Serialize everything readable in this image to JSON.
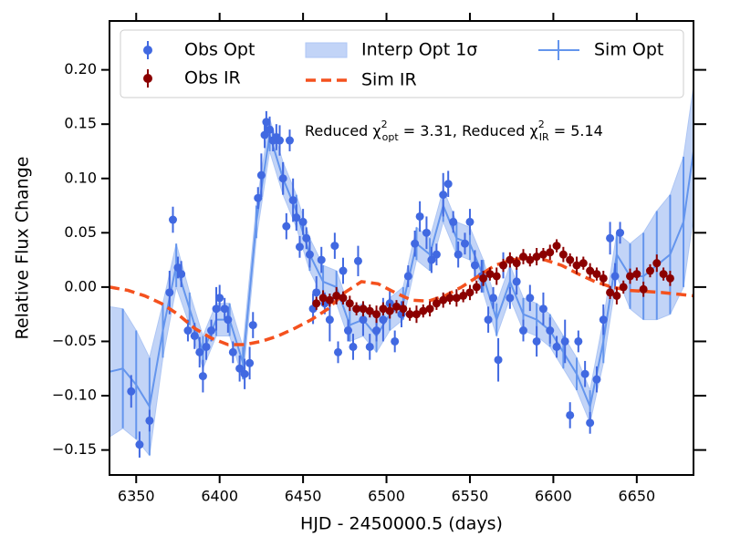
{
  "chart_data": {
    "type": "line",
    "xlabel": "HJD - 2450000.5 (days)",
    "ylabel": "Relative Flux Change",
    "annotation": [
      "Reduced χ",
      "2",
      "opt",
      " = 3.31, Reduced χ",
      "2",
      "IR",
      " = 5.14"
    ],
    "xlim": [
      6334,
      6684
    ],
    "ylim": [
      -0.173,
      0.245
    ],
    "xticks": [
      6350,
      6400,
      6450,
      6500,
      6550,
      6600,
      6650
    ],
    "yticks": [
      {
        "value": -0.15,
        "label": "−0.15"
      },
      {
        "value": -0.1,
        "label": "−0.10"
      },
      {
        "value": -0.05,
        "label": "−0.05"
      },
      {
        "value": 0.0,
        "label": "0.00"
      },
      {
        "value": 0.05,
        "label": "0.05"
      },
      {
        "value": 0.1,
        "label": "0.10"
      },
      {
        "value": 0.15,
        "label": "0.15"
      },
      {
        "value": 0.2,
        "label": "0.20"
      }
    ],
    "grid": false,
    "legend": "upper center",
    "legend_columns": 3,
    "series": [
      {
        "name": "Interp Opt 1σ",
        "kind": "band",
        "color": "#aec6f4",
        "x": [
          6334,
          6342,
          6350,
          6358,
          6366,
          6374,
          6382,
          6390,
          6398,
          6406,
          6414,
          6422,
          6430,
          6438,
          6446,
          6454,
          6462,
          6470,
          6478,
          6486,
          6494,
          6502,
          6510,
          6518,
          6526,
          6534,
          6542,
          6550,
          6558,
          6566,
          6574,
          6582,
          6590,
          6598,
          6606,
          6614,
          6622,
          6630,
          6638,
          6646,
          6654,
          6662,
          6670,
          6678,
          6684
        ],
        "lower": [
          -0.138,
          -0.13,
          -0.14,
          -0.155,
          -0.065,
          0.0,
          -0.035,
          -0.075,
          -0.045,
          -0.045,
          -0.085,
          0.045,
          0.125,
          0.085,
          0.055,
          0.015,
          -0.01,
          -0.015,
          -0.05,
          -0.045,
          -0.06,
          -0.04,
          -0.03,
          0.025,
          0.015,
          0.06,
          0.03,
          0.025,
          -0.005,
          -0.045,
          -0.01,
          -0.04,
          -0.045,
          -0.055,
          -0.075,
          -0.095,
          -0.125,
          -0.07,
          0.01,
          -0.02,
          -0.03,
          -0.03,
          -0.025,
          0.0,
          0.065
        ],
        "upper": [
          -0.018,
          -0.02,
          -0.04,
          -0.065,
          -0.015,
          0.04,
          -0.005,
          -0.045,
          -0.015,
          -0.015,
          -0.055,
          0.075,
          0.155,
          0.115,
          0.085,
          0.045,
          0.02,
          0.015,
          -0.02,
          -0.015,
          -0.03,
          -0.01,
          0.0,
          0.055,
          0.045,
          0.09,
          0.06,
          0.055,
          0.025,
          -0.015,
          0.02,
          -0.01,
          -0.015,
          -0.025,
          -0.045,
          -0.065,
          -0.095,
          -0.03,
          0.05,
          0.04,
          0.05,
          0.07,
          0.085,
          0.12,
          0.185
        ]
      },
      {
        "name": "Sim Opt",
        "kind": "line-errorbar",
        "color": "#6495ed",
        "x": [
          6334,
          6342,
          6350,
          6358,
          6366,
          6374,
          6382,
          6390,
          6398,
          6406,
          6414,
          6422,
          6430,
          6438,
          6446,
          6454,
          6462,
          6470,
          6478,
          6486,
          6494,
          6502,
          6510,
          6518,
          6526,
          6534,
          6542,
          6550,
          6558,
          6566,
          6574,
          6582,
          6590,
          6598,
          6606,
          6614,
          6622,
          6630,
          6638,
          6646,
          6654,
          6662,
          6670,
          6678,
          6684
        ],
        "values": [
          -0.078,
          -0.075,
          -0.09,
          -0.11,
          -0.04,
          0.02,
          -0.02,
          -0.06,
          -0.03,
          -0.03,
          -0.07,
          0.06,
          0.14,
          0.1,
          0.07,
          0.03,
          0.005,
          0.0,
          -0.035,
          -0.03,
          -0.045,
          -0.025,
          -0.015,
          0.04,
          0.03,
          0.075,
          0.045,
          0.04,
          0.01,
          -0.03,
          0.005,
          -0.025,
          -0.03,
          -0.04,
          -0.06,
          -0.08,
          -0.11,
          -0.05,
          0.03,
          0.01,
          0.01,
          0.02,
          0.03,
          0.06,
          0.125
        ],
        "errors": [
          0.06,
          0.055,
          0.05,
          0.045,
          0.025,
          0.02,
          0.015,
          0.015,
          0.015,
          0.015,
          0.015,
          0.015,
          0.015,
          0.015,
          0.015,
          0.015,
          0.015,
          0.015,
          0.015,
          0.015,
          0.015,
          0.015,
          0.015,
          0.015,
          0.015,
          0.015,
          0.015,
          0.015,
          0.015,
          0.015,
          0.015,
          0.015,
          0.015,
          0.015,
          0.015,
          0.015,
          0.015,
          0.02,
          0.02,
          0.03,
          0.04,
          0.05,
          0.055,
          0.06,
          0.06
        ]
      },
      {
        "name": "Obs Opt",
        "kind": "errorbar",
        "color": "#4169e1",
        "x": [
          6347,
          6352,
          6358,
          6370,
          6372,
          6375,
          6377,
          6381,
          6385,
          6388,
          6390,
          6392,
          6395,
          6398,
          6400,
          6403,
          6405,
          6408,
          6412,
          6415,
          6418,
          6420,
          6423,
          6425,
          6427,
          6428,
          6430,
          6432,
          6434,
          6436,
          6438,
          6440,
          6442,
          6444,
          6446,
          6448,
          6450,
          6452,
          6454,
          6456,
          6458,
          6461,
          6463,
          6466,
          6469,
          6471,
          6474,
          6477,
          6480,
          6483,
          6486,
          6490,
          6494,
          6498,
          6502,
          6505,
          6509,
          6513,
          6517,
          6520,
          6524,
          6527,
          6530,
          6534,
          6537,
          6540,
          6543,
          6547,
          6550,
          6553,
          6557,
          6561,
          6564,
          6567,
          6570,
          6574,
          6578,
          6582,
          6586,
          6590,
          6594,
          6598,
          6602,
          6607,
          6610,
          6615,
          6619,
          6622,
          6626,
          6630,
          6634,
          6637,
          6640
        ],
        "values": [
          -0.096,
          -0.145,
          -0.123,
          -0.005,
          0.062,
          0.018,
          0.012,
          -0.04,
          -0.045,
          -0.06,
          -0.082,
          -0.055,
          -0.04,
          -0.02,
          -0.01,
          -0.02,
          -0.03,
          -0.06,
          -0.075,
          -0.08,
          -0.07,
          -0.035,
          0.082,
          0.103,
          0.14,
          0.152,
          0.145,
          0.135,
          0.138,
          0.135,
          0.1,
          0.056,
          0.135,
          0.08,
          0.064,
          0.037,
          0.06,
          0.045,
          0.03,
          -0.02,
          -0.005,
          0.025,
          -0.015,
          -0.03,
          0.038,
          -0.06,
          0.015,
          -0.04,
          -0.055,
          0.024,
          -0.03,
          -0.055,
          -0.04,
          -0.03,
          -0.015,
          -0.05,
          -0.025,
          0.01,
          0.04,
          0.065,
          0.05,
          0.025,
          0.03,
          0.085,
          0.095,
          0.06,
          0.03,
          0.04,
          0.06,
          0.02,
          0.01,
          -0.03,
          -0.01,
          -0.067,
          0.02,
          -0.01,
          0.005,
          -0.04,
          -0.01,
          -0.05,
          -0.02,
          -0.04,
          -0.055,
          -0.05,
          -0.118,
          -0.05,
          -0.08,
          -0.125,
          -0.085,
          -0.03,
          0.045,
          0.01,
          0.05
        ],
        "errors": [
          0.015,
          0.012,
          0.01,
          0.02,
          0.012,
          0.01,
          0.012,
          0.01,
          0.012,
          0.014,
          0.015,
          0.012,
          0.01,
          0.02,
          0.012,
          0.01,
          0.012,
          0.01,
          0.012,
          0.014,
          0.015,
          0.012,
          0.01,
          0.02,
          0.012,
          0.01,
          0.012,
          0.01,
          0.012,
          0.014,
          0.015,
          0.012,
          0.01,
          0.02,
          0.012,
          0.01,
          0.012,
          0.01,
          0.012,
          0.014,
          0.015,
          0.012,
          0.01,
          0.02,
          0.012,
          0.01,
          0.012,
          0.01,
          0.012,
          0.014,
          0.015,
          0.012,
          0.01,
          0.02,
          0.012,
          0.01,
          0.012,
          0.01,
          0.012,
          0.014,
          0.015,
          0.012,
          0.01,
          0.02,
          0.012,
          0.01,
          0.012,
          0.01,
          0.012,
          0.014,
          0.015,
          0.012,
          0.01,
          0.02,
          0.012,
          0.01,
          0.012,
          0.01,
          0.012,
          0.014,
          0.015,
          0.012,
          0.01,
          0.02,
          0.012,
          0.01,
          0.012,
          0.01,
          0.012,
          0.014,
          0.015,
          0.012,
          0.01
        ]
      },
      {
        "name": "Sim IR",
        "kind": "dashed",
        "color": "#f4511e",
        "x": [
          6334,
          6345,
          6355,
          6365,
          6375,
          6385,
          6395,
          6405,
          6415,
          6425,
          6435,
          6445,
          6455,
          6465,
          6475,
          6485,
          6495,
          6505,
          6515,
          6525,
          6535,
          6545,
          6555,
          6565,
          6575,
          6585,
          6595,
          6605,
          6615,
          6625,
          6635,
          6645,
          6655,
          6665,
          6684
        ],
        "values": [
          0.0,
          -0.003,
          -0.008,
          -0.015,
          -0.025,
          -0.038,
          -0.047,
          -0.053,
          -0.053,
          -0.05,
          -0.045,
          -0.038,
          -0.03,
          -0.02,
          -0.005,
          0.005,
          0.003,
          -0.005,
          -0.012,
          -0.013,
          -0.008,
          0.0,
          0.01,
          0.02,
          0.025,
          0.027,
          0.025,
          0.02,
          0.012,
          0.005,
          0.0,
          -0.003,
          -0.004,
          -0.005,
          -0.008
        ]
      },
      {
        "name": "Obs IR",
        "kind": "errorbar",
        "color": "#8b0000",
        "x": [
          6458,
          6462,
          6466,
          6470,
          6474,
          6478,
          6482,
          6486,
          6490,
          6494,
          6498,
          6502,
          6506,
          6510,
          6514,
          6518,
          6522,
          6526,
          6530,
          6534,
          6538,
          6542,
          6546,
          6550,
          6554,
          6558,
          6562,
          6566,
          6570,
          6574,
          6578,
          6582,
          6586,
          6590,
          6594,
          6598,
          6602,
          6606,
          6610,
          6614,
          6618,
          6622,
          6626,
          6630,
          6634,
          6638,
          6642,
          6646,
          6650,
          6654,
          6658,
          6662,
          6666,
          6670
        ],
        "values": [
          -0.015,
          -0.01,
          -0.012,
          -0.008,
          -0.01,
          -0.015,
          -0.02,
          -0.02,
          -0.022,
          -0.025,
          -0.02,
          -0.022,
          -0.018,
          -0.02,
          -0.025,
          -0.025,
          -0.022,
          -0.02,
          -0.015,
          -0.012,
          -0.01,
          -0.01,
          -0.008,
          -0.005,
          0.0,
          0.008,
          0.012,
          0.01,
          0.02,
          0.025,
          0.022,
          0.028,
          0.025,
          0.028,
          0.03,
          0.032,
          0.038,
          0.03,
          0.025,
          0.02,
          0.022,
          0.015,
          0.012,
          0.008,
          -0.005,
          -0.008,
          0.0,
          0.01,
          0.012,
          -0.002,
          0.015,
          0.022,
          0.012,
          0.008
        ],
        "errors": [
          0.006,
          0.007,
          0.006,
          0.008,
          0.006,
          0.007,
          0.006,
          0.007,
          0.006,
          0.008,
          0.006,
          0.007,
          0.006,
          0.007,
          0.006,
          0.008,
          0.006,
          0.007,
          0.006,
          0.007,
          0.006,
          0.008,
          0.006,
          0.007,
          0.006,
          0.007,
          0.006,
          0.008,
          0.006,
          0.007,
          0.006,
          0.007,
          0.006,
          0.008,
          0.006,
          0.007,
          0.006,
          0.007,
          0.006,
          0.008,
          0.006,
          0.007,
          0.006,
          0.007,
          0.006,
          0.008,
          0.006,
          0.007,
          0.006,
          0.007,
          0.006,
          0.008,
          0.006,
          0.007
        ]
      }
    ]
  }
}
